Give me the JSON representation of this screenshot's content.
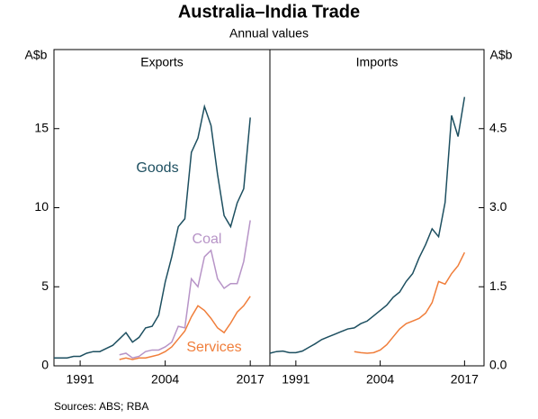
{
  "title": "Australia–India Trade",
  "subtitle": "Annual values",
  "source": "Sources:   ABS; RBA",
  "chart_data": [
    {
      "type": "line",
      "title": "Exports",
      "y_label": "A$b",
      "y_axis_side": "left",
      "x": [
        1987,
        1988,
        1989,
        1990,
        1991,
        1992,
        1993,
        1994,
        1995,
        1996,
        1997,
        1998,
        1999,
        2000,
        2001,
        2002,
        2003,
        2004,
        2005,
        2006,
        2007,
        2008,
        2009,
        2010,
        2011,
        2012,
        2013,
        2014,
        2015,
        2016,
        2017
      ],
      "xlim": [
        1987,
        2020
      ],
      "xticks": [
        1991,
        2004,
        2017
      ],
      "ylim": [
        0,
        20
      ],
      "yticks": [
        0,
        5,
        10,
        15
      ],
      "series": [
        {
          "name": "Goods",
          "color": "#1d4f60",
          "values": [
            0.5,
            0.5,
            0.5,
            0.6,
            0.6,
            0.8,
            0.9,
            0.9,
            1.1,
            1.3,
            1.7,
            2.1,
            1.5,
            1.8,
            2.4,
            2.5,
            3.2,
            5.3,
            6.9,
            8.8,
            9.3,
            13.5,
            14.4,
            16.4,
            15.2,
            12.1,
            9.5,
            8.8,
            10.3,
            11.2,
            15.7
          ]
        },
        {
          "name": "Coal",
          "color": "#b794c7",
          "values": [
            null,
            null,
            null,
            null,
            null,
            null,
            null,
            null,
            null,
            null,
            0.7,
            0.8,
            0.5,
            0.6,
            0.9,
            1.0,
            1.0,
            1.2,
            1.5,
            2.5,
            2.4,
            5.5,
            5.0,
            6.9,
            7.3,
            5.5,
            4.9,
            5.2,
            5.2,
            6.6,
            9.2
          ]
        },
        {
          "name": "Services",
          "color": "#f07e3b",
          "values": [
            null,
            null,
            null,
            null,
            null,
            null,
            null,
            null,
            null,
            null,
            0.4,
            0.5,
            0.4,
            0.5,
            0.5,
            0.6,
            0.7,
            0.9,
            1.2,
            1.7,
            2.2,
            3.1,
            3.8,
            3.5,
            3.0,
            2.4,
            2.1,
            2.7,
            3.4,
            3.8,
            4.4
          ]
        }
      ]
    },
    {
      "type": "line",
      "title": "Imports",
      "y_label": "A$b",
      "y_axis_side": "right",
      "x": [
        1987,
        1988,
        1989,
        1990,
        1991,
        1992,
        1993,
        1994,
        1995,
        1996,
        1997,
        1998,
        1999,
        2000,
        2001,
        2002,
        2003,
        2004,
        2005,
        2006,
        2007,
        2008,
        2009,
        2010,
        2011,
        2012,
        2013,
        2014,
        2015,
        2016,
        2017
      ],
      "xlim": [
        1987,
        2020
      ],
      "xticks": [
        1991,
        2004,
        2017
      ],
      "ylim": [
        0,
        6
      ],
      "yticks": [
        {
          "value": 0,
          "label": "0.0"
        },
        1.5,
        {
          "value": 3,
          "label": "3.0"
        },
        4.5
      ],
      "series": [
        {
          "color": "#1d4f60",
          "values": [
            0.24,
            0.27,
            0.28,
            0.25,
            0.25,
            0.28,
            0.35,
            0.42,
            0.5,
            0.55,
            0.6,
            0.65,
            0.7,
            0.72,
            0.8,
            0.85,
            0.95,
            1.05,
            1.15,
            1.3,
            1.4,
            1.6,
            1.75,
            2.05,
            2.3,
            2.6,
            2.45,
            3.1,
            4.75,
            4.35,
            5.1
          ]
        },
        {
          "color": "#f07e3b",
          "values": [
            null,
            null,
            null,
            null,
            null,
            null,
            null,
            null,
            null,
            null,
            null,
            null,
            null,
            0.27,
            0.25,
            0.24,
            0.25,
            0.3,
            0.4,
            0.55,
            0.7,
            0.8,
            0.85,
            0.9,
            1.0,
            1.2,
            1.6,
            1.55,
            1.75,
            1.9,
            2.15
          ]
        }
      ]
    }
  ]
}
